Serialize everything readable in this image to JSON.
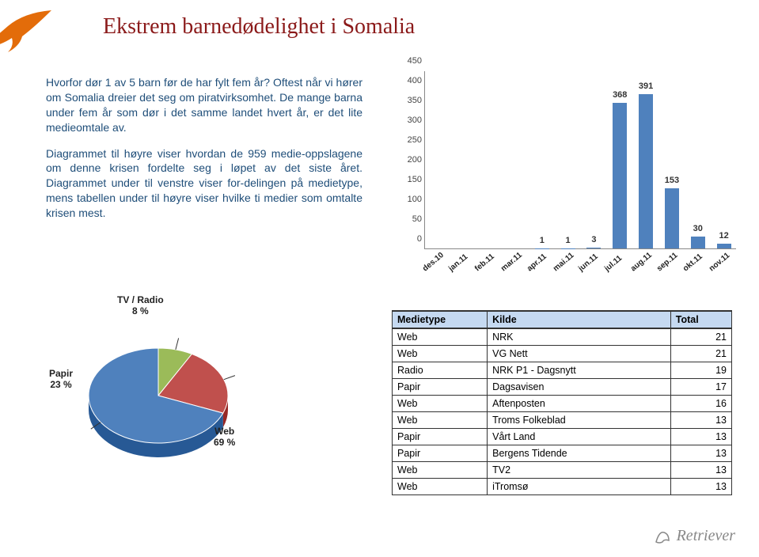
{
  "title": "Ekstrem barnedødelighet i Somalia",
  "paragraphs": [
    "Hvorfor dør 1 av 5 barn før de har fylt fem år? Oftest når vi hører om Somalia dreier det seg om piratvirksomhet. De mange barna under fem år som dør i det samme landet hvert år, er det lite medieomtale av.",
    "Diagrammet til høyre viser hvordan de 959 medie-oppslagene om denne krisen fordelte seg i løpet av det siste året. Diagrammet under til venstre viser for-delingen på medietype, mens tabellen under til høyre viser hvilke ti medier som omtalte krisen mest."
  ],
  "barchart": {
    "type": "bar",
    "ylim": [
      0,
      450
    ],
    "ytick_step": 50,
    "categories": [
      "des.10",
      "jan.11",
      "feb.11",
      "mar.11",
      "apr.11",
      "mai.11",
      "jun.11",
      "jul.11",
      "aug.11",
      "sep.11",
      "okt.11",
      "nov.11"
    ],
    "values": [
      0,
      0,
      0,
      0,
      1,
      1,
      3,
      368,
      391,
      153,
      30,
      12
    ],
    "bar_color": "#4f81bd",
    "grid_color": "#888888",
    "label_fontsize": 10,
    "value_fontsize": 11,
    "background_color": "#ffffff"
  },
  "pie": {
    "type": "pie",
    "slices": [
      {
        "label": "Web",
        "pct": "69 %",
        "value": 69,
        "color": "#4f81bd"
      },
      {
        "label": "Papir",
        "pct": "23 %",
        "value": 23,
        "color": "#c0504d"
      },
      {
        "label": "TV / Radio",
        "pct": "8 %",
        "value": 8,
        "color": "#9bbb59"
      }
    ],
    "background_color": "#ffffff"
  },
  "table": {
    "headers": [
      "Medietype",
      "Kilde",
      "Total"
    ],
    "header_bg": "#c5d9f1",
    "border_color": "#333333",
    "rows": [
      [
        "Web",
        "NRK",
        "21"
      ],
      [
        "Web",
        "VG Nett",
        "21"
      ],
      [
        "Radio",
        "NRK P1 - Dagsnytt",
        "19"
      ],
      [
        "Papir",
        "Dagsavisen",
        "17"
      ],
      [
        "Web",
        "Aftenposten",
        "16"
      ],
      [
        "Web",
        "Troms Folkeblad",
        "13"
      ],
      [
        "Papir",
        "Vårt Land",
        "13"
      ],
      [
        "Papir",
        "Bergens Tidende",
        "13"
      ],
      [
        "Web",
        "TV2",
        "13"
      ],
      [
        "Web",
        "iTromsø",
        "13"
      ]
    ]
  },
  "footer_brand": "Retriever",
  "brand_color": "#e36c0a"
}
